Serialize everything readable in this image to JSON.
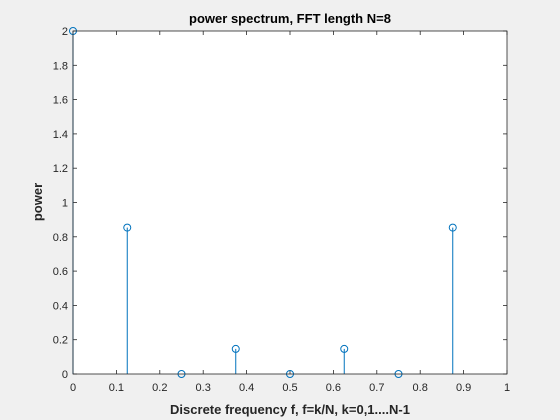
{
  "chart_data": {
    "type": "stem",
    "title": "power spectrum, FFT length N=8",
    "xlabel": "Discrete frequency f, f=k/N, k=0,1....N-1",
    "ylabel": "power",
    "xlim": [
      0,
      1
    ],
    "ylim": [
      0,
      2
    ],
    "xticks": [
      "0",
      "0.1",
      "0.2",
      "0.3",
      "0.4",
      "0.5",
      "0.6",
      "0.7",
      "0.8",
      "0.9",
      "1"
    ],
    "yticks": [
      "0",
      "0.2",
      "0.4",
      "0.6",
      "0.8",
      "1",
      "1.2",
      "1.4",
      "1.6",
      "1.8",
      "2"
    ],
    "grid": false,
    "x": [
      0,
      0.125,
      0.25,
      0.375,
      0.5,
      0.625,
      0.75,
      0.875
    ],
    "values": [
      2,
      0.8536,
      0,
      0.1464,
      0,
      0.1464,
      0,
      0.8536
    ],
    "colors": {
      "series": "#0072bd",
      "axes_background": "#ffffff",
      "figure_background": "#f0f0f0",
      "axis": "#262626"
    }
  }
}
